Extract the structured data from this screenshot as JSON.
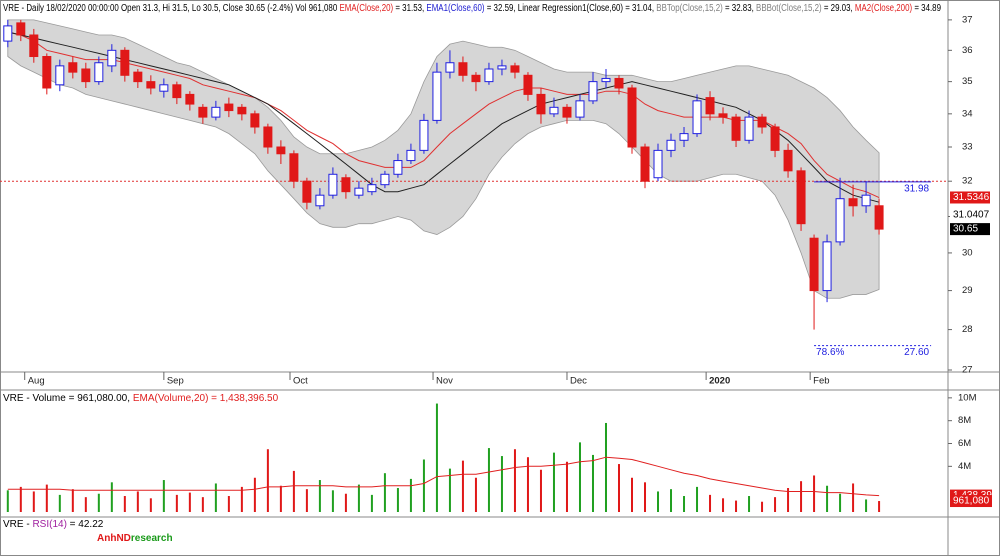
{
  "chart_data": [
    {
      "type": "candlestick",
      "header": [
        {
          "text": "VRE - Daily 18/02/2020 00:00:00 Open 31.3, Hi 31.5, Lo 30.5, Close 30.65 (-2.4%) Vol 961,080 ",
          "color": "#000000"
        },
        {
          "text": "EMA(Close,20)",
          "color": "#e02020"
        },
        {
          "text": " = 31.53, ",
          "color": "#000000"
        },
        {
          "text": "EMA1(Close,60)",
          "color": "#2020d0"
        },
        {
          "text": " = 32.59, Linear Regression1(Close,60) = 31.04, ",
          "color": "#000000"
        },
        {
          "text": "BBTop(Close,15,2)",
          "color": "#808080"
        },
        {
          "text": " = 32.83, ",
          "color": "#000000"
        },
        {
          "text": "BBBot(Close,15,2)",
          "color": "#808080"
        },
        {
          "text": " = 29.03, ",
          "color": "#000000"
        },
        {
          "text": "MA2(Close,200)",
          "color": "#e02020"
        },
        {
          "text": " = 34.89",
          "color": "#000000"
        }
      ],
      "open": [
        36.3,
        36.9,
        36.5,
        35.8,
        34.9,
        35.6,
        35.4,
        35.0,
        35.5,
        36.0,
        35.3,
        35.0,
        34.7,
        34.9,
        34.6,
        34.2,
        33.9,
        34.3,
        34.2,
        34.0,
        33.6,
        33.0,
        32.8,
        32.0,
        31.3,
        31.6,
        32.1,
        31.6,
        31.7,
        31.9,
        32.2,
        32.6,
        32.9,
        33.8,
        35.3,
        35.6,
        35.2,
        35.0,
        35.4,
        35.5,
        35.2,
        34.6,
        34.0,
        34.2,
        33.9,
        34.4,
        35.0,
        35.1,
        34.8,
        33.0,
        32.1,
        32.9,
        33.2,
        33.4,
        34.5,
        34.0,
        33.9,
        33.2,
        33.9,
        33.6,
        32.9,
        32.3,
        30.4,
        29.0,
        30.3,
        31.5,
        31.3,
        31.3
      ],
      "high": [
        37.0,
        37.0,
        36.7,
        35.9,
        35.7,
        35.8,
        35.6,
        35.8,
        36.2,
        36.1,
        35.4,
        35.2,
        35.1,
        35.0,
        34.7,
        34.3,
        34.4,
        34.5,
        34.3,
        34.1,
        33.7,
        33.2,
        32.9,
        32.1,
        31.8,
        32.4,
        32.2,
        32.0,
        32.1,
        32.3,
        32.8,
        33.1,
        34.0,
        35.6,
        36.0,
        35.8,
        35.3,
        35.6,
        35.7,
        35.6,
        35.3,
        34.8,
        34.5,
        34.3,
        34.6,
        35.3,
        35.4,
        35.2,
        34.9,
        33.1,
        33.1,
        33.4,
        33.6,
        34.6,
        34.7,
        34.2,
        34.0,
        34.1,
        34.0,
        33.7,
        33.1,
        32.4,
        30.5,
        30.5,
        32.1,
        31.9,
        32.0,
        31.5
      ],
      "low": [
        36.1,
        36.3,
        35.6,
        34.6,
        34.7,
        35.1,
        34.8,
        34.9,
        35.3,
        35.0,
        34.8,
        34.6,
        34.5,
        34.3,
        34.1,
        33.7,
        33.8,
        33.9,
        33.8,
        33.4,
        32.8,
        32.5,
        31.8,
        31.2,
        31.2,
        31.5,
        31.5,
        31.5,
        31.6,
        31.8,
        32.1,
        32.5,
        32.8,
        33.7,
        35.1,
        35.0,
        34.7,
        34.9,
        35.2,
        35.1,
        34.4,
        33.7,
        33.9,
        33.7,
        33.8,
        34.3,
        34.8,
        34.6,
        32.8,
        31.8,
        32.0,
        32.7,
        33.0,
        33.3,
        33.8,
        33.7,
        33.0,
        33.1,
        33.4,
        32.7,
        32.1,
        30.6,
        28.0,
        28.7,
        30.2,
        31.0,
        31.1,
        30.5
      ],
      "close": [
        36.8,
        36.5,
        35.8,
        34.8,
        35.5,
        35.3,
        35.0,
        35.6,
        36.0,
        35.2,
        35.0,
        34.8,
        34.9,
        34.5,
        34.3,
        33.9,
        34.2,
        34.1,
        34.0,
        33.6,
        33.0,
        32.8,
        32.0,
        31.4,
        31.6,
        32.2,
        31.7,
        31.8,
        31.9,
        32.2,
        32.6,
        32.9,
        33.8,
        35.3,
        35.6,
        35.2,
        35.0,
        35.4,
        35.5,
        35.3,
        34.6,
        34.0,
        34.2,
        33.9,
        34.4,
        35.0,
        35.1,
        34.8,
        33.0,
        32.0,
        32.9,
        33.2,
        33.4,
        34.4,
        34.0,
        33.9,
        33.2,
        33.9,
        33.6,
        32.9,
        32.3,
        30.8,
        29.0,
        30.3,
        31.5,
        31.3,
        31.6,
        30.65
      ],
      "up_color": "#2020e0",
      "down_color": "#e01818",
      "band": {
        "color": "#d6d6d6",
        "edge": "#9a9a9a",
        "upper": [
          37.0,
          37.0,
          37.0,
          36.9,
          36.8,
          36.7,
          36.6,
          36.5,
          36.5,
          36.4,
          36.2,
          36.0,
          35.8,
          35.6,
          35.5,
          35.3,
          35.1,
          34.9,
          34.7,
          34.5,
          34.2,
          33.8,
          33.3,
          33.0,
          32.8,
          32.8,
          32.8,
          32.9,
          33.0,
          33.2,
          33.5,
          34.0,
          35.0,
          35.8,
          36.2,
          36.3,
          36.2,
          36.1,
          36.1,
          36.0,
          35.8,
          35.6,
          35.4,
          35.3,
          35.3,
          35.3,
          35.2,
          35.2,
          35.2,
          35.1,
          35.0,
          35.0,
          35.1,
          35.2,
          35.3,
          35.4,
          35.5,
          35.5,
          35.4,
          35.3,
          35.2,
          35.0,
          34.8,
          34.5,
          34.1,
          33.6,
          33.2,
          32.83
        ],
        "lower": [
          35.8,
          35.5,
          35.3,
          35.1,
          34.9,
          34.8,
          34.6,
          34.5,
          34.4,
          34.3,
          34.2,
          34.1,
          34.0,
          33.9,
          33.8,
          33.7,
          33.6,
          33.4,
          33.1,
          32.8,
          32.3,
          31.9,
          31.5,
          31.1,
          30.8,
          30.7,
          30.7,
          30.8,
          30.8,
          30.9,
          31.0,
          30.9,
          30.6,
          30.5,
          30.7,
          31.0,
          31.5,
          32.2,
          32.7,
          33.1,
          33.4,
          33.6,
          33.7,
          33.8,
          33.8,
          33.8,
          33.7,
          33.4,
          33.0,
          32.6,
          32.2,
          32.0,
          32.0,
          32.0,
          32.1,
          32.2,
          32.2,
          32.1,
          32.0,
          31.6,
          30.9,
          30.0,
          29.0,
          28.8,
          28.8,
          28.9,
          28.9,
          29.03
        ]
      },
      "lines": [
        {
          "color": "#e03030",
          "values": [
            36.6,
            36.5,
            36.3,
            36.0,
            35.9,
            35.8,
            35.7,
            35.7,
            35.7,
            35.6,
            35.5,
            35.4,
            35.3,
            35.2,
            35.1,
            34.9,
            34.8,
            34.7,
            34.6,
            34.5,
            34.3,
            34.1,
            33.8,
            33.5,
            33.3,
            33.1,
            32.8,
            32.6,
            32.5,
            32.4,
            32.4,
            32.4,
            32.6,
            33.0,
            33.4,
            33.7,
            34.0,
            34.3,
            34.5,
            34.7,
            34.8,
            34.8,
            34.7,
            34.6,
            34.6,
            34.6,
            34.7,
            34.7,
            34.6,
            34.3,
            34.1,
            34.0,
            33.9,
            33.9,
            33.9,
            33.9,
            33.8,
            33.8,
            33.8,
            33.6,
            33.4,
            33.1,
            32.6,
            32.2,
            32.0,
            31.8,
            31.7,
            31.53
          ]
        },
        {
          "color": "#202020",
          "values": [
            36.6,
            36.5,
            36.4,
            36.3,
            36.2,
            36.1,
            36.0,
            35.9,
            35.8,
            35.7,
            35.6,
            35.5,
            35.4,
            35.3,
            35.2,
            35.1,
            35.0,
            34.9,
            34.7,
            34.5,
            34.3,
            34.0,
            33.7,
            33.4,
            33.1,
            32.8,
            32.5,
            32.2,
            31.9,
            31.7,
            31.7,
            31.8,
            31.9,
            32.2,
            32.5,
            32.8,
            33.1,
            33.4,
            33.7,
            33.9,
            34.1,
            34.3,
            34.4,
            34.5,
            34.6,
            34.7,
            34.8,
            34.9,
            35.0,
            34.9,
            34.8,
            34.7,
            34.6,
            34.5,
            34.4,
            34.3,
            34.2,
            34.0,
            33.8,
            33.5,
            33.2,
            32.8,
            32.4,
            32.0,
            31.8,
            31.6,
            31.5,
            31.4
          ]
        }
      ],
      "log": true,
      "xlim": [
        -0.6,
        72.3
      ],
      "xticks": [
        {
          "value": 1.3,
          "label": "Aug"
        },
        {
          "value": 12,
          "label": "Sep"
        },
        {
          "value": 21.7,
          "label": "Oct"
        },
        {
          "value": 32.7,
          "label": "Nov"
        },
        {
          "value": 43,
          "label": "Dec"
        },
        {
          "value": 53.7,
          "label": "2020",
          "bold": true
        },
        {
          "value": 61.7,
          "label": "Feb"
        }
      ],
      "ylim": [
        27,
        37.6
      ],
      "yticks": [
        27,
        28,
        29,
        30,
        31,
        32,
        33,
        34,
        35,
        36,
        37
      ],
      "hlines": [
        {
          "value": 32,
          "color": "#e03030",
          "dash": true,
          "x0": -0.6,
          "x1": 72.3
        },
        {
          "value": 31.98,
          "label": "31.98",
          "color": "#2020e0",
          "dash": false,
          "x0": 62,
          "x1": 71
        },
        {
          "value": 27.6,
          "label": "27.60",
          "start_label": "78.6%",
          "color": "#2020e0",
          "dash": true,
          "x0": 62,
          "x1": 71
        }
      ],
      "price_labels": [
        {
          "value": 31.5346,
          "bg": "#e01818",
          "fg": "#ffffff"
        },
        {
          "value": 31.0407,
          "bg": "#ffffff",
          "fg": "#000000"
        },
        {
          "value": 30.65,
          "bg": "#000000",
          "fg": "#ffffff"
        }
      ]
    },
    {
      "type": "volume",
      "header": [
        {
          "text": "VRE - Volume = 961,080.00, ",
          "color": "#000000"
        },
        {
          "text": "EMA(Volume,20) = 1,438,396.50",
          "color": "#e02020"
        }
      ],
      "values": [
        1.9,
        2.2,
        1.8,
        2.4,
        1.5,
        2.0,
        1.3,
        1.6,
        2.6,
        1.4,
        1.8,
        1.2,
        2.8,
        1.5,
        1.7,
        1.3,
        2.5,
        1.4,
        2.2,
        3.0,
        5.5,
        2.3,
        3.6,
        2.0,
        2.8,
        1.9,
        1.6,
        2.4,
        1.5,
        3.4,
        2.1,
        2.9,
        4.6,
        9.5,
        3.8,
        4.5,
        3.0,
        5.6,
        4.9,
        5.5,
        4.8,
        3.7,
        5.2,
        4.4,
        6.1,
        5.0,
        7.8,
        4.2,
        3.0,
        2.6,
        1.8,
        2.0,
        1.4,
        2.2,
        1.5,
        1.2,
        1.0,
        1.4,
        0.9,
        1.3,
        2.1,
        2.7,
        3.2,
        2.3,
        1.6,
        2.5,
        1.1,
        0.96108
      ],
      "up_color": "#20a020",
      "down_color": "#e01818",
      "line": {
        "color": "#e02020",
        "values": [
          2.0,
          2.0,
          2.0,
          2.0,
          2.0,
          1.9,
          1.9,
          1.9,
          1.9,
          1.9,
          1.9,
          1.9,
          1.9,
          1.9,
          1.9,
          1.9,
          1.9,
          1.9,
          1.9,
          2.0,
          2.2,
          2.2,
          2.3,
          2.3,
          2.3,
          2.3,
          2.2,
          2.2,
          2.2,
          2.3,
          2.3,
          2.3,
          2.5,
          3.1,
          3.2,
          3.3,
          3.3,
          3.5,
          3.7,
          3.9,
          4.0,
          4.0,
          4.1,
          4.2,
          4.4,
          4.5,
          4.8,
          4.7,
          4.6,
          4.3,
          4.0,
          3.7,
          3.4,
          3.2,
          2.9,
          2.7,
          2.5,
          2.3,
          2.1,
          1.9,
          1.8,
          1.8,
          1.8,
          1.7,
          1.7,
          1.6,
          1.5,
          1.43839
        ]
      },
      "ylim": [
        0,
        10.6
      ],
      "yticks": [
        {
          "value": 4,
          "label": "4M"
        },
        {
          "value": 6,
          "label": "6M"
        },
        {
          "value": 8,
          "label": "8M"
        },
        {
          "value": 10,
          "label": "10M"
        }
      ],
      "value_boxes": [
        {
          "value": 1.43839,
          "label": "1,438.39",
          "bg": "#e01818"
        },
        {
          "value": 0.96108,
          "label": "961,080",
          "bg": "#e01818"
        }
      ]
    },
    {
      "type": "indicator",
      "header": [
        {
          "text": "VRE - ",
          "color": "#000000"
        },
        {
          "text": "RSI(14)",
          "color": "#a020a0"
        },
        {
          "text": " = 42.22",
          "color": "#000000"
        }
      ]
    }
  ],
  "watermark": [
    {
      "text": "AnhND",
      "color": "#e01818"
    },
    {
      "text": "research",
      "color": "#1a9a1a"
    }
  ]
}
